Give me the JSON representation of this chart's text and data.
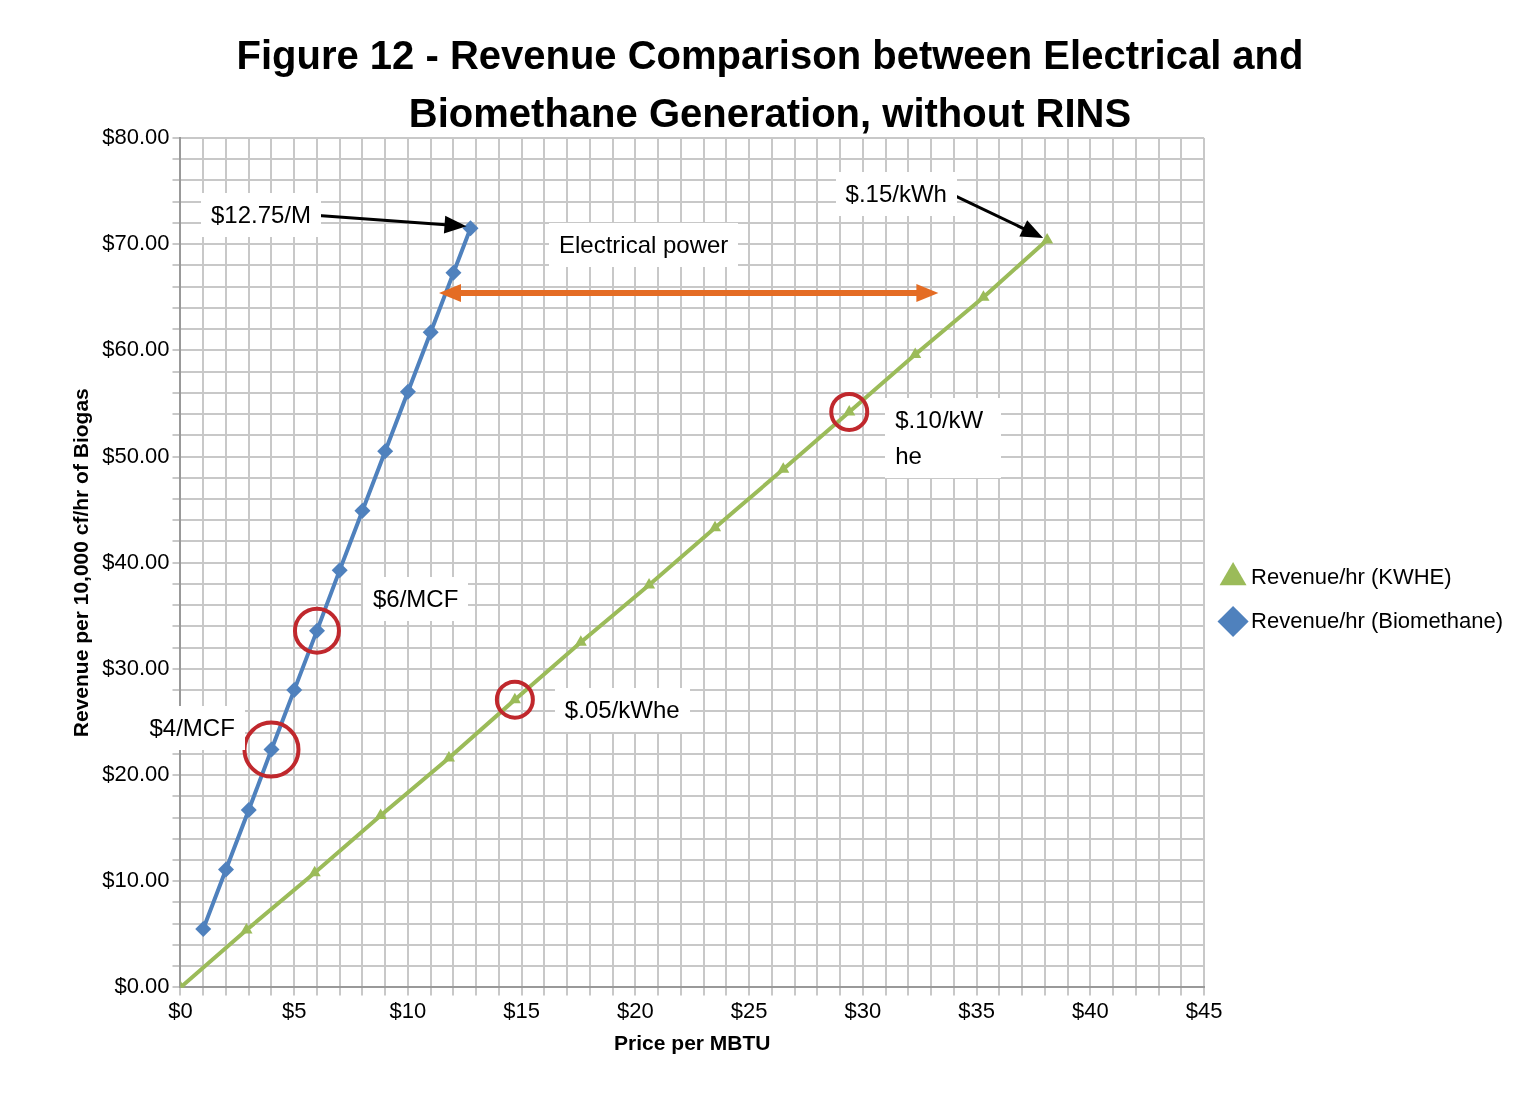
{
  "chart_data": {
    "type": "line",
    "title": "Figure 12 - Revenue Comparison between Electrical and Biomethane Generation, without RINS",
    "xlabel": "Price per MBTU",
    "ylabel": "Revenue per 10,000 cf/hr of Biogas",
    "xlim": [
      0,
      45
    ],
    "ylim": [
      0,
      80
    ],
    "xticks": [
      {
        "value": 0,
        "label": "$0"
      },
      {
        "value": 1,
        "label": null
      },
      {
        "value": 2,
        "label": null
      },
      {
        "value": 3,
        "label": null
      },
      {
        "value": 4,
        "label": null
      },
      {
        "value": 5,
        "label": "$5"
      },
      {
        "value": 6,
        "label": null
      },
      {
        "value": 7,
        "label": null
      },
      {
        "value": 8,
        "label": null
      },
      {
        "value": 9,
        "label": null
      },
      {
        "value": 10,
        "label": "$10"
      },
      {
        "value": 11,
        "label": null
      },
      {
        "value": 12,
        "label": null
      },
      {
        "value": 13,
        "label": null
      },
      {
        "value": 14,
        "label": null
      },
      {
        "value": 15,
        "label": "$15"
      },
      {
        "value": 16,
        "label": null
      },
      {
        "value": 17,
        "label": null
      },
      {
        "value": 18,
        "label": null
      },
      {
        "value": 19,
        "label": null
      },
      {
        "value": 20,
        "label": "$20"
      },
      {
        "value": 21,
        "label": null
      },
      {
        "value": 22,
        "label": null
      },
      {
        "value": 23,
        "label": null
      },
      {
        "value": 24,
        "label": null
      },
      {
        "value": 25,
        "label": "$25"
      },
      {
        "value": 26,
        "label": null
      },
      {
        "value": 27,
        "label": null
      },
      {
        "value": 28,
        "label": null
      },
      {
        "value": 29,
        "label": null
      },
      {
        "value": 30,
        "label": "$30"
      },
      {
        "value": 31,
        "label": null
      },
      {
        "value": 32,
        "label": null
      },
      {
        "value": 33,
        "label": null
      },
      {
        "value": 34,
        "label": null
      },
      {
        "value": 35,
        "label": "$35"
      },
      {
        "value": 36,
        "label": null
      },
      {
        "value": 37,
        "label": null
      },
      {
        "value": 38,
        "label": null
      },
      {
        "value": 39,
        "label": null
      },
      {
        "value": 40,
        "label": "$40"
      },
      {
        "value": 41,
        "label": null
      },
      {
        "value": 42,
        "label": null
      },
      {
        "value": 43,
        "label": null
      },
      {
        "value": 44,
        "label": null
      },
      {
        "value": 45,
        "label": "$45"
      }
    ],
    "yticks": [
      {
        "value": 0,
        "label": "$0.00"
      },
      {
        "value": 2,
        "label": null
      },
      {
        "value": 4,
        "label": null
      },
      {
        "value": 6,
        "label": null
      },
      {
        "value": 8,
        "label": null
      },
      {
        "value": 10,
        "label": "$10.00"
      },
      {
        "value": 12,
        "label": null
      },
      {
        "value": 14,
        "label": null
      },
      {
        "value": 16,
        "label": null
      },
      {
        "value": 18,
        "label": null
      },
      {
        "value": 20,
        "label": "$20.00"
      },
      {
        "value": 22,
        "label": null
      },
      {
        "value": 24,
        "label": null
      },
      {
        "value": 26,
        "label": null
      },
      {
        "value": 28,
        "label": null
      },
      {
        "value": 30,
        "label": "$30.00"
      },
      {
        "value": 32,
        "label": null
      },
      {
        "value": 34,
        "label": null
      },
      {
        "value": 36,
        "label": null
      },
      {
        "value": 38,
        "label": null
      },
      {
        "value": 40,
        "label": "$40.00"
      },
      {
        "value": 42,
        "label": null
      },
      {
        "value": 44,
        "label": null
      },
      {
        "value": 46,
        "label": null
      },
      {
        "value": 48,
        "label": null
      },
      {
        "value": 50,
        "label": "$50.00"
      },
      {
        "value": 52,
        "label": null
      },
      {
        "value": 54,
        "label": null
      },
      {
        "value": 56,
        "label": null
      },
      {
        "value": 58,
        "label": null
      },
      {
        "value": 60,
        "label": "$60.00"
      },
      {
        "value": 62,
        "label": null
      },
      {
        "value": 64,
        "label": null
      },
      {
        "value": 66,
        "label": null
      },
      {
        "value": 68,
        "label": null
      },
      {
        "value": 70,
        "label": "$70.00"
      },
      {
        "value": 72,
        "label": null
      },
      {
        "value": 74,
        "label": null
      },
      {
        "value": 76,
        "label": null
      },
      {
        "value": 78,
        "label": null
      },
      {
        "value": 80,
        "label": "$80.00"
      }
    ],
    "grid": true,
    "legend": "right",
    "series": [
      {
        "name": "Revenue/hr (KWHE)",
        "color": "#9bbb59",
        "marker": "triangle",
        "x": [
          0,
          2.9,
          5.9,
          8.8,
          11.8,
          14.7,
          17.6,
          20.6,
          23.5,
          26.5,
          29.4,
          32.3,
          35.3,
          38.1
        ],
        "values": [
          0,
          5.4,
          10.8,
          16.2,
          21.6,
          27.1,
          32.5,
          37.9,
          43.3,
          48.8,
          54.2,
          59.6,
          65.0,
          70.4
        ]
      },
      {
        "name": "Revenue/hr (Biomethane)",
        "color": "#4f81bd",
        "marker": "diamond",
        "x": [
          1,
          2,
          3,
          4,
          5,
          6,
          7,
          8,
          9,
          10,
          11,
          12,
          12.75
        ],
        "values": [
          5.5,
          11.1,
          16.7,
          22.4,
          28.0,
          33.6,
          39.3,
          44.9,
          50.5,
          56.1,
          61.7,
          67.3,
          71.5
        ]
      }
    ],
    "annotations": [
      "$12.75/M",
      "$.15/kWh",
      "Electrical power",
      {
        "text": "$.10/kWhe",
        "x": 29.4,
        "y": 54.2
      },
      {
        "text": "$6/MCF",
        "x": 6,
        "y": 33.6
      },
      {
        "text": "$4/MCF",
        "x": 4,
        "y": 22.4
      },
      {
        "text": "$.05/kWhe",
        "x": 14.7,
        "y": 27.1
      }
    ]
  }
}
